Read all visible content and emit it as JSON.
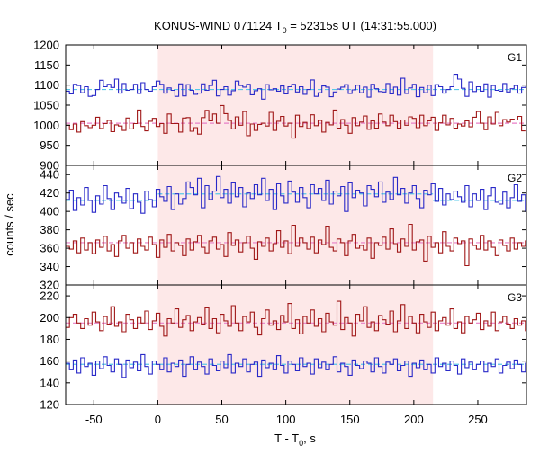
{
  "chart_data": {
    "type": "line",
    "style": "histogram-steps",
    "title": "KONUS-WIND 071124 T0 = 52315s UT (14:31:55.000)",
    "title_parts": {
      "prefix": "KONUS-WIND 071124 T",
      "sub": "0",
      "suffix": " = 52315s UT (14:31:55.000)"
    },
    "xlabel_parts": {
      "prefix": "T - T",
      "sub": "0",
      "suffix": ", s"
    },
    "ylabel": "counts / sec",
    "xlim": [
      -72,
      288
    ],
    "xticks": [
      -50,
      0,
      50,
      100,
      150,
      200,
      250
    ],
    "bin_width": 2.944,
    "highlight_interval": [
      0,
      215
    ],
    "highlight_color": "#fde8e8",
    "panels": [
      {
        "label": "G1",
        "ylim": [
          900,
          1200
        ],
        "yticks": [
          900,
          950,
          1000,
          1050,
          1100,
          1150,
          1200
        ],
        "series": [
          {
            "color": "#2929c8",
            "fit_color": "#58c8e8",
            "fit_level": 1089,
            "values": [
              1085,
              1078,
              1102,
              1099,
              1081,
              1096,
              1072,
              1074,
              1089,
              1112,
              1096,
              1102,
              1094,
              1115,
              1080,
              1104,
              1087,
              1089,
              1102,
              1079,
              1106,
              1089,
              1085,
              1096,
              1110,
              1102,
              1080,
              1093,
              1087,
              1072,
              1103,
              1073,
              1101,
              1087,
              1077,
              1080,
              1103,
              1087,
              1099,
              1112,
              1073,
              1089,
              1096,
              1075,
              1086,
              1110,
              1099,
              1095,
              1102,
              1076,
              1086,
              1091,
              1065,
              1101,
              1088,
              1091,
              1085,
              1098,
              1078,
              1096,
              1102,
              1083,
              1096,
              1077,
              1089,
              1113,
              1072,
              1081,
              1098,
              1095,
              1071,
              1083,
              1090,
              1095,
              1101,
              1079,
              1088,
              1100,
              1081,
              1095,
              1070,
              1102,
              1091,
              1084,
              1083,
              1104,
              1078,
              1095,
              1075,
              1117,
              1079,
              1093,
              1102,
              1071,
              1094,
              1081,
              1100,
              1074,
              1101,
              1096,
              1080,
              1089,
              1096,
              1127,
              1115,
              1092,
              1072,
              1108,
              1084,
              1096,
              1085,
              1103,
              1070,
              1099,
              1087,
              1085,
              1104,
              1083,
              1091,
              1099,
              1080,
              1094,
              1095,
              1086
            ]
          },
          {
            "color": "#a01818",
            "fit_color": "#e87fc8",
            "fit_level": 1005,
            "values": [
              1000,
              989,
              1003,
              983,
              1009,
              999,
              994,
              1000,
              1020,
              992,
              1004,
              1012,
              984,
              1001,
              998,
              987,
              1018,
              991,
              1004,
              1038,
              997,
              986,
              1010,
              1017,
              997,
              1004,
              980,
              1028,
              1004,
              1004,
              983,
              1018,
              1019,
              985,
              994,
              978,
              1019,
              1037,
              1011,
              1028,
              1005,
              1049,
              1029,
              1012,
              991,
              1021,
              1000,
              1034,
              974,
              1003,
              987,
              1002,
              1005,
              998,
              1032,
              987,
              1010,
              1022,
              998,
              1005,
              968,
              1025,
              997,
              1007,
              992,
              1026,
              999,
              1012,
              983,
              1007,
              1001,
              1038,
              993,
              1014,
              1000,
              980,
              1019,
              999,
              1008,
              1023,
              990,
              1011,
              993,
              1028,
              1008,
              999,
              1025,
              1009,
              993,
              1013,
              1000,
              1021,
              1017,
              994,
              1025,
              999,
              1011,
              1020,
              987,
              1006,
              1025,
              1001,
              1017,
              993,
              1003,
              998,
              1011,
              996,
              1020,
              1034,
              1005,
              989,
              1021,
              1003,
              1032,
              999,
              1014,
              1008,
              1015,
              1013,
              1022,
              986
            ]
          }
        ]
      },
      {
        "label": "G2",
        "ylim": [
          320,
          450
        ],
        "yticks": [
          320,
          340,
          360,
          380,
          400,
          420,
          440
        ],
        "series": [
          {
            "color": "#2929c8",
            "fit_color": "#58c8e8",
            "fit_level": 412,
            "fit_level_during": 419,
            "values": [
              413,
              423,
              401,
              415,
              407,
              426,
              412,
              399,
              417,
              408,
              428,
              414,
              402,
              420,
              416,
              409,
              425,
              403,
              419,
              410,
              398,
              422,
              413,
              405,
              424,
              416,
              411,
              427,
              402,
              419,
              408,
              414,
              432,
              426,
              418,
              436,
              404,
              428,
              413,
              422,
              438,
              415,
              424,
              409,
              431,
              416,
              426,
              405,
              420,
              414,
              429,
              418,
              436,
              412,
              424,
              402,
              430,
              417,
              409,
              433,
              421,
              410,
              426,
              415,
              404,
              429,
              419,
              425,
              412,
              434,
              408,
              422,
              417,
              427,
              400,
              431,
              415,
              423,
              420,
              406,
              428,
              424,
              416,
              432,
              410,
              421,
              413,
              437,
              418,
              425,
              409,
              420,
              428,
              414,
              404,
              423,
              418,
              430,
              411,
              425,
              407,
              419,
              413,
              422,
              416,
              410,
              428,
              405,
              419,
              412,
              424,
              402,
              417,
              426,
              410,
              408,
              421,
              404,
              415,
              429,
              411,
              418,
              400,
              413
            ]
          },
          {
            "color": "#a01818",
            "fit_color": "#e87fc8",
            "fit_level": 366,
            "values": [
              362,
              359,
              368,
              355,
              371,
              358,
              366,
              354,
              369,
              361,
              373,
              357,
              364,
              351,
              368,
              374,
              360,
              366,
              355,
              370,
              362,
              358,
              372,
              364,
              350,
              369,
              361,
              375,
              357,
              366,
              363,
              352,
              370,
              358,
              367,
              374,
              361,
              355,
              368,
              372,
              359,
              364,
              351,
              377,
              363,
              369,
              356,
              366,
              373,
              360,
              348,
              367,
              362,
              371,
              357,
              365,
              379,
              361,
              368,
              354,
              385,
              362,
              371,
              366,
              359,
              372,
              355,
              369,
              364,
              384,
              361,
              357,
              370,
              366,
              352,
              368,
              375,
              360,
              363,
              358,
              371,
              349,
              366,
              363,
              372,
              359,
              381,
              365,
              356,
              370,
              362,
              386,
              358,
              367,
              369,
              346,
              373,
              361,
              366,
              355,
              378,
              362,
              357,
              371,
              365,
              368,
              341,
              370,
              363,
              359,
              374,
              358,
              368,
              361,
              352,
              369,
              363,
              357,
              371,
              359,
              366,
              362,
              368,
              364
            ]
          }
        ]
      },
      {
        "label": "G3",
        "ylim": [
          120,
          230
        ],
        "yticks": [
          120,
          140,
          160,
          180,
          200,
          220
        ],
        "series": [
          {
            "color": "#a01818",
            "fit_color": "#e87fc8",
            "fit_level": 195,
            "values": [
              191,
              200,
              203,
              195,
              190,
              199,
              193,
              205,
              196,
              188,
              201,
              194,
              210,
              192,
              196,
              187,
              203,
              198,
              190,
              200,
              195,
              206,
              189,
              197,
              204,
              192,
              183,
              199,
              195,
              208,
              191,
              198,
              202,
              188,
              196,
              200,
              194,
              209,
              190,
              199,
              186,
              203,
              197,
              192,
              211,
              195,
              188,
              201,
              196,
              205,
              191,
              184,
              199,
              207,
              193,
              197,
              189,
              202,
              196,
              213,
              190,
              198,
              185,
              201,
              195,
              207,
              192,
              199,
              187,
              204,
              196,
              193,
              215,
              189,
              200,
              195,
              183,
              203,
              197,
              210,
              191,
              196,
              188,
              202,
              198,
              194,
              206,
              187,
              197,
              212,
              190,
              201,
              195,
              186,
              203,
              196,
              191,
              205,
              188,
              197,
              200,
              193,
              208,
              190,
              196,
              186,
              201,
              195,
              198,
              204,
              189,
              197,
              192,
              205,
              188,
              196,
              201,
              194,
              190,
              199,
              193,
              197,
              188,
              195
            ]
          },
          {
            "color": "#2929c8",
            "fit_color": "#58c8e8",
            "fit_level": 157,
            "values": [
              158,
              152,
              161,
              149,
              163,
              155,
              158,
              147,
              160,
              153,
              164,
              156,
              150,
              162,
              157,
              145,
              161,
              154,
              159,
              151,
              166,
              155,
              148,
              160,
              157,
              152,
              163,
              150,
              158,
              155,
              161,
              146,
              157,
              164,
              152,
              159,
              155,
              148,
              162,
              156,
              151,
              160,
              154,
              166,
              149,
              158,
              155,
              162,
              150,
              157,
              159,
              146,
              161,
              154,
              158,
              152,
              165,
              156,
              149,
              160,
              157,
              151,
              163,
              155,
              158,
              148,
              162,
              154,
              159,
              152,
              157,
              164,
              150,
              158,
              155,
              147,
              161,
              156,
              153,
              160,
              158,
              150,
              163,
              155,
              149,
              159,
              157,
              162,
              151,
              156,
              160,
              146,
              158,
              154,
              161,
              152,
              157,
              149,
              163,
              155,
              158,
              151,
              160,
              156,
              148,
              162,
              154,
              159,
              152,
              157,
              160,
              150,
              158,
              155,
              162,
              149,
              156,
              159,
              153,
              161,
              157,
              150,
              158,
              155
            ]
          }
        ]
      }
    ]
  }
}
